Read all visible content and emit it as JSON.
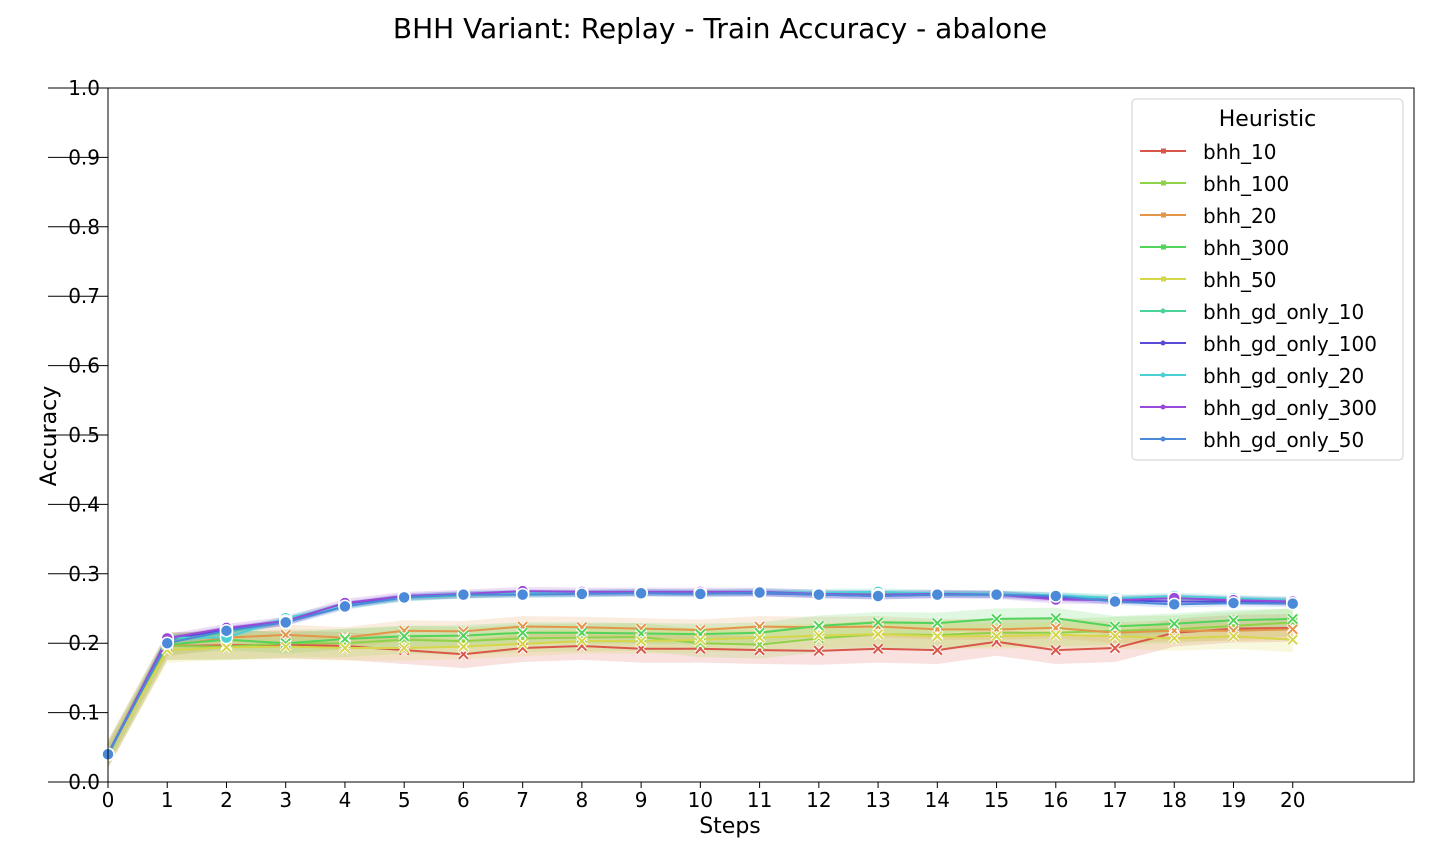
{
  "chart_data": {
    "type": "line",
    "title": "BHH Variant: Replay - Train Accuracy - abalone",
    "xlabel": "Steps",
    "ylabel": "Accuracy",
    "xlim": [
      0,
      21
    ],
    "ylim": [
      0,
      1
    ],
    "x_ticks": [
      0,
      1,
      2,
      3,
      4,
      5,
      6,
      7,
      8,
      9,
      10,
      11,
      12,
      13,
      14,
      15,
      16,
      17,
      18,
      19,
      20
    ],
    "y_ticks": [
      "0.0",
      "0.1",
      "0.2",
      "0.3",
      "0.4",
      "0.5",
      "0.6",
      "0.7",
      "0.8",
      "0.9",
      "1.0"
    ],
    "grid": false,
    "legend": {
      "title": "Heuristic",
      "placement": "top-right"
    },
    "x": [
      0,
      1,
      2,
      3,
      4,
      5,
      6,
      7,
      8,
      9,
      10,
      11,
      12,
      13,
      14,
      15,
      16,
      17,
      18,
      19,
      20
    ],
    "series": [
      {
        "name": "bhh_10",
        "color": "#d9574a",
        "marker": "x",
        "values": [
          0.04,
          0.196,
          0.197,
          0.198,
          0.196,
          0.19,
          0.184,
          0.193,
          0.196,
          0.192,
          0.192,
          0.19,
          0.189,
          0.192,
          0.19,
          0.202,
          0.19,
          0.193,
          0.215,
          0.221,
          0.222
        ],
        "band": 0.02
      },
      {
        "name": "bhh_100",
        "color": "#8fd24a",
        "marker": "x",
        "values": [
          0.04,
          0.196,
          0.195,
          0.2,
          0.2,
          0.205,
          0.203,
          0.207,
          0.208,
          0.209,
          0.2,
          0.198,
          0.207,
          0.213,
          0.212,
          0.215,
          0.215,
          0.218,
          0.22,
          0.225,
          0.23
        ],
        "band": 0.02
      },
      {
        "name": "bhh_20",
        "color": "#e3954a",
        "marker": "x",
        "values": [
          0.04,
          0.196,
          0.208,
          0.212,
          0.208,
          0.218,
          0.217,
          0.224,
          0.223,
          0.221,
          0.219,
          0.224,
          0.223,
          0.224,
          0.22,
          0.22,
          0.222,
          0.215,
          0.218,
          0.218,
          0.22
        ],
        "band": 0.015
      },
      {
        "name": "bhh_300",
        "color": "#52d45a",
        "marker": "x",
        "values": [
          0.04,
          0.198,
          0.205,
          0.2,
          0.206,
          0.21,
          0.211,
          0.215,
          0.215,
          0.214,
          0.213,
          0.215,
          0.225,
          0.23,
          0.229,
          0.235,
          0.236,
          0.224,
          0.228,
          0.233,
          0.235
        ],
        "band": 0.015
      },
      {
        "name": "bhh_50",
        "color": "#d6d64a",
        "marker": "x",
        "values": [
          0.04,
          0.19,
          0.194,
          0.195,
          0.193,
          0.193,
          0.195,
          0.199,
          0.203,
          0.203,
          0.205,
          0.208,
          0.211,
          0.213,
          0.21,
          0.21,
          0.212,
          0.21,
          0.207,
          0.21,
          0.205
        ],
        "band": 0.018
      },
      {
        "name": "bhh_gd_only_10",
        "color": "#4ad49a",
        "marker": "o",
        "values": [
          0.04,
          0.205,
          0.215,
          0.233,
          0.255,
          0.265,
          0.269,
          0.271,
          0.272,
          0.273,
          0.273,
          0.273,
          0.272,
          0.272,
          0.272,
          0.271,
          0.268,
          0.265,
          0.264,
          0.263,
          0.262
        ],
        "band": 0.005
      },
      {
        "name": "bhh_gd_only_100",
        "color": "#5a4ad8",
        "marker": "o",
        "values": [
          0.04,
          0.205,
          0.22,
          0.23,
          0.255,
          0.267,
          0.27,
          0.272,
          0.272,
          0.273,
          0.272,
          0.272,
          0.27,
          0.268,
          0.27,
          0.27,
          0.265,
          0.262,
          0.26,
          0.26,
          0.26
        ],
        "band": 0.005
      },
      {
        "name": "bhh_gd_only_20",
        "color": "#4ad0d4",
        "marker": "o",
        "values": [
          0.04,
          0.208,
          0.208,
          0.236,
          0.254,
          0.265,
          0.27,
          0.272,
          0.272,
          0.273,
          0.273,
          0.274,
          0.273,
          0.274,
          0.272,
          0.271,
          0.269,
          0.265,
          0.268,
          0.265,
          0.262
        ],
        "band": 0.005
      },
      {
        "name": "bhh_gd_only_300",
        "color": "#9a4ad8",
        "marker": "o",
        "values": [
          0.04,
          0.207,
          0.222,
          0.232,
          0.258,
          0.268,
          0.271,
          0.275,
          0.274,
          0.274,
          0.274,
          0.274,
          0.271,
          0.27,
          0.271,
          0.27,
          0.263,
          0.262,
          0.265,
          0.262,
          0.26
        ],
        "band": 0.006
      },
      {
        "name": "bhh_gd_only_50",
        "color": "#4a8ad8",
        "marker": "o",
        "values": [
          0.04,
          0.2,
          0.218,
          0.23,
          0.253,
          0.266,
          0.27,
          0.27,
          0.271,
          0.272,
          0.271,
          0.273,
          0.27,
          0.268,
          0.27,
          0.27,
          0.268,
          0.26,
          0.256,
          0.258,
          0.257
        ],
        "band": 0.005
      }
    ]
  }
}
